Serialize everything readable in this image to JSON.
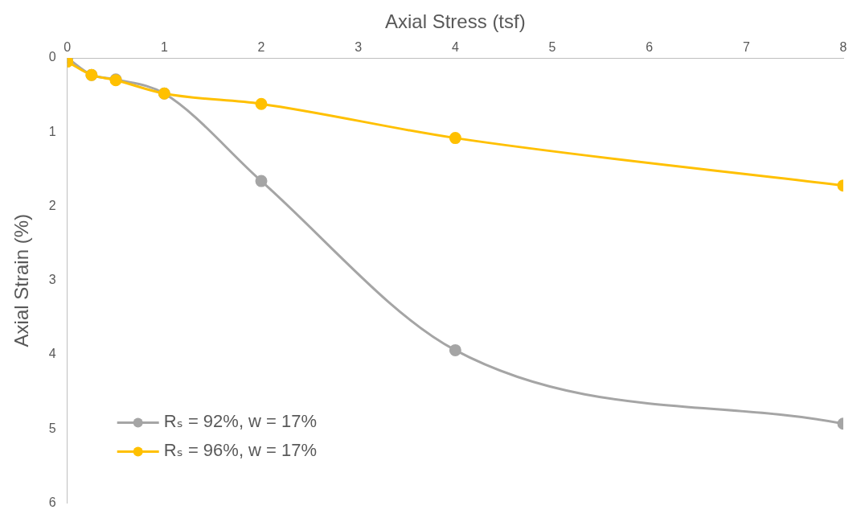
{
  "chart_data": {
    "type": "line",
    "xlabel": "Axial Stress (tsf)",
    "ylabel": "Axial Strain (%)",
    "xlim": [
      0,
      8
    ],
    "xticks": [
      0,
      1,
      2,
      3,
      4,
      5,
      6,
      7,
      8
    ],
    "ylim": [
      6,
      0
    ],
    "yticks": [
      0,
      1,
      2,
      3,
      4,
      5,
      6
    ],
    "grid": false,
    "legend": "bottom left",
    "marker": "circle",
    "line_style": "solid",
    "series": [
      {
        "name": "Rₛ = 92%, w = 17%",
        "color": "#a5a5a5",
        "x": [
          0,
          0.25,
          0.5,
          1,
          2,
          4,
          8
        ],
        "values": [
          0,
          0.23,
          0.29,
          0.48,
          1.66,
          3.94,
          4.93
        ]
      },
      {
        "name": "Rₛ = 96%, w = 17%",
        "color": "#ffc000",
        "x": [
          0,
          0.25,
          0.5,
          1,
          2,
          4,
          8
        ],
        "values": [
          0.05,
          0.23,
          0.3,
          0.48,
          0.62,
          1.08,
          1.72
        ]
      }
    ]
  }
}
